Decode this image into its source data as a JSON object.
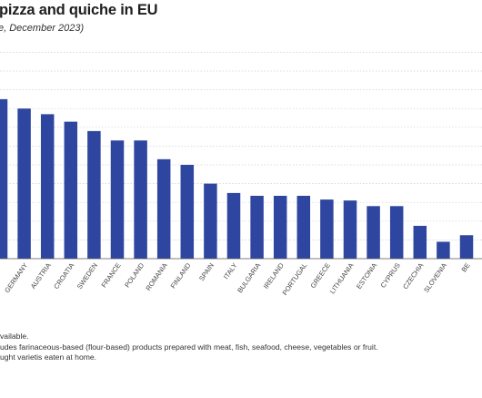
{
  "title": "pizza and quiche in EU",
  "subtitle": "e, December 2023)",
  "footnotes": [
    "vailable.",
    "udes farinaceous-based (flour-based) products prepared with meat, fish, seafood, cheese, vegetables or fruit.",
    "ught varietis eaten at home."
  ],
  "colors": {
    "bar": "#2e46a0",
    "grid": "#cfcfcf",
    "axis": "#555555"
  },
  "chart_data": {
    "type": "bar",
    "title": "pizza and quiche in EU",
    "subtitle": "e, December 2023)",
    "xlabel": "",
    "ylabel": "",
    "grid": true,
    "ylim": [
      0,
      11
    ],
    "categories": [
      "",
      "GERMANY",
      "AUSTRIA",
      "CROATIA",
      "SWEDEN",
      "FRANCE",
      "POLAND",
      "ROMANIA",
      "FINLAND",
      "SPAIN",
      "ITALY",
      "BULGARIA",
      "IRELAND",
      "PORTUGAL",
      "GREECE",
      "LITHUANIA",
      "ESTONIA",
      "CYPRUS",
      "CZECHIA",
      "SLOVENIA",
      "BE"
    ],
    "values": [
      8.5,
      8.0,
      7.7,
      7.3,
      6.8,
      6.3,
      6.3,
      5.3,
      5.0,
      4.0,
      3.5,
      3.35,
      3.35,
      3.35,
      3.15,
      3.1,
      2.8,
      2.8,
      1.75,
      0.9,
      1.25
    ]
  }
}
